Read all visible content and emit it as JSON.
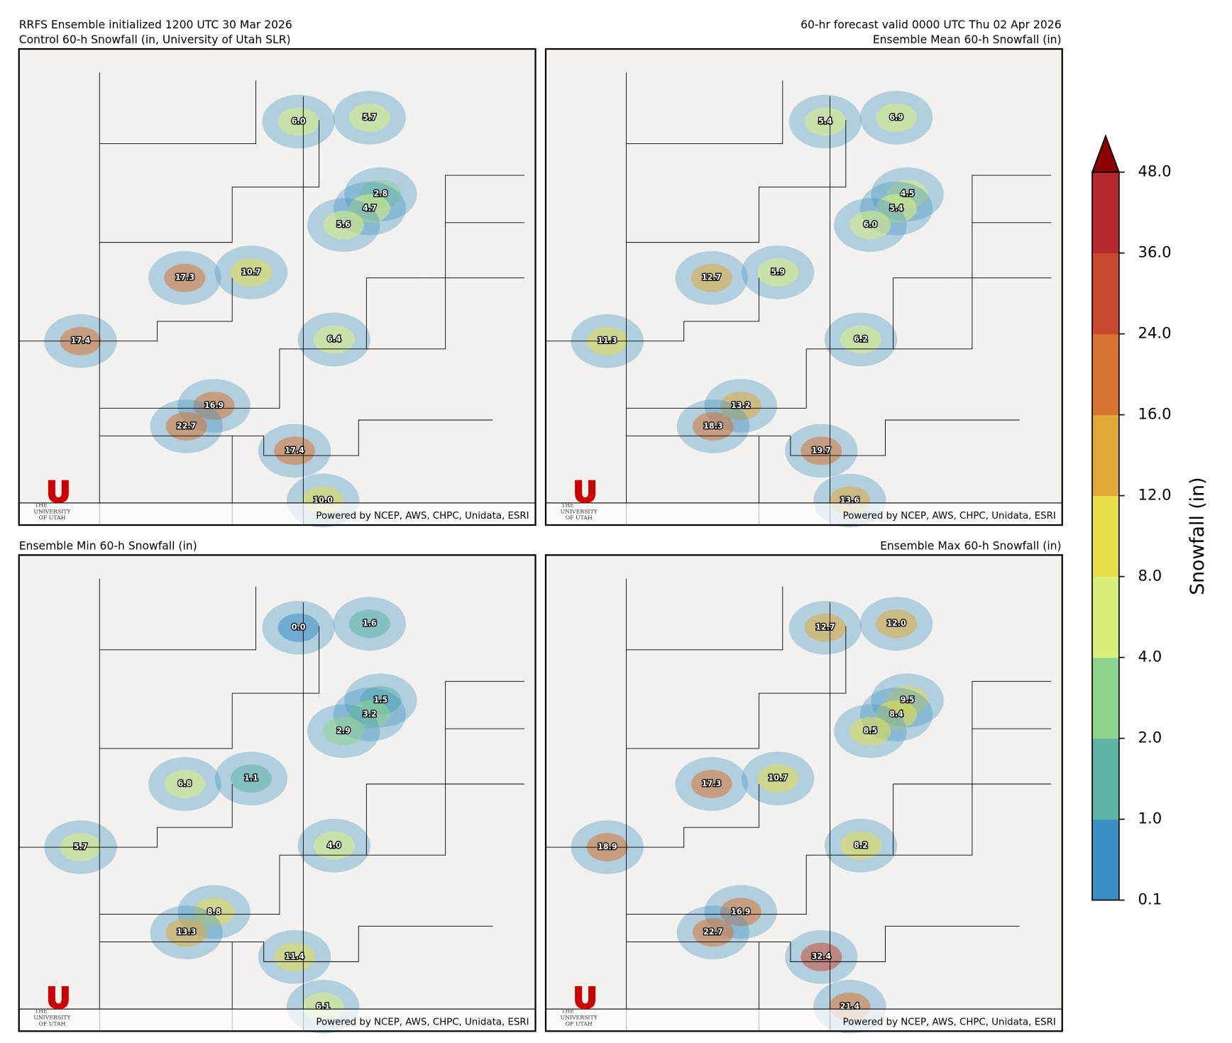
{
  "header": {
    "init": "RRFS Ensemble initialized 1200 UTC 30 Mar 2026",
    "valid": "60-hr forecast valid 0000 UTC Thu 02 Apr 2026"
  },
  "logo": {
    "line1": "THE",
    "line2": "UNIVERSITY",
    "line3": "OF UTAH"
  },
  "attribution": "Powered by NCEP, AWS, CHPC, Unidata, ESRI",
  "panels": [
    {
      "title": "Control 60-h Snowfall (in, University of Utah SLR)",
      "labels": [
        "6.0",
        "5.7",
        "2.8",
        "4.7",
        "5.6",
        "17.3",
        "10.7",
        "6.4",
        "17.4",
        "16.9",
        "22.7",
        "17.4",
        "10.0"
      ]
    },
    {
      "title": "Ensemble Mean 60-h Snowfall (in)",
      "labels": [
        "5.4",
        "6.9",
        "4.5",
        "5.4",
        "6.0",
        "12.7",
        "5.9",
        "6.2",
        "11.3",
        "13.2",
        "18.3",
        "19.7",
        "13.6"
      ]
    },
    {
      "title": "Ensemble Min 60-h Snowfall (in)",
      "labels": [
        "0.0",
        "1.6",
        "1.5",
        "3.2",
        "2.9",
        "6.8",
        "1.1",
        "4.0",
        "5.7",
        "8.8",
        "13.3",
        "11.4",
        "6.1"
      ]
    },
    {
      "title": "Ensemble Max 60-h Snowfall (in)",
      "labels": [
        "12.7",
        "12.0",
        "9.5",
        "8.4",
        "8.5",
        "17.3",
        "10.7",
        "8.2",
        "18.9",
        "16.9",
        "22.7",
        "32.4",
        "21.4"
      ]
    }
  ],
  "colorbar": {
    "label": "Snowfall (in)",
    "ticks": [
      {
        "value": 0.1,
        "label": "0.1"
      },
      {
        "value": 1,
        "label": "1.0"
      },
      {
        "value": 2,
        "label": "2.0"
      },
      {
        "value": 4,
        "label": "4.0"
      },
      {
        "value": 8,
        "label": "8.0"
      },
      {
        "value": 12,
        "label": "12.0"
      },
      {
        "value": 16,
        "label": "16.0"
      },
      {
        "value": 24,
        "label": "24.0"
      },
      {
        "value": 36,
        "label": "36.0"
      },
      {
        "value": 48,
        "label": "48.0"
      }
    ],
    "colors": [
      "#3a8fc4",
      "#5fb4a8",
      "#8fd48e",
      "#d8f07a",
      "#e8de4a",
      "#e0a935",
      "#d97530",
      "#c84a30",
      "#b5292e"
    ],
    "extend_color": "#8b0000"
  }
}
